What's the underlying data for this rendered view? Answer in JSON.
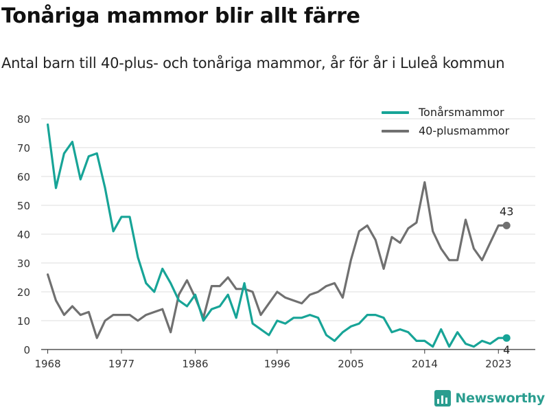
{
  "header": {
    "title": "Tonåriga mammor blir allt färre",
    "subtitle": "Antal barn till 40-plus- och tonåriga mammor, år för år i Luleå kommun"
  },
  "brand": {
    "name": "Newsworthy",
    "color": "#2a9d8f"
  },
  "chart_data": {
    "type": "line",
    "x": [
      1968,
      1969,
      1970,
      1971,
      1972,
      1973,
      1974,
      1975,
      1976,
      1977,
      1978,
      1979,
      1980,
      1981,
      1982,
      1983,
      1984,
      1985,
      1986,
      1987,
      1988,
      1989,
      1990,
      1991,
      1992,
      1993,
      1994,
      1995,
      1996,
      1997,
      1998,
      1999,
      2000,
      2001,
      2002,
      2003,
      2004,
      2005,
      2006,
      2007,
      2008,
      2009,
      2010,
      2011,
      2012,
      2013,
      2014,
      2015,
      2016,
      2017,
      2018,
      2019,
      2020,
      2021,
      2022,
      2023,
      2024
    ],
    "x_ticks": [
      1968,
      1977,
      1986,
      1996,
      2005,
      2014,
      2023
    ],
    "y_ticks": [
      0,
      10,
      20,
      30,
      40,
      50,
      60,
      70,
      80
    ],
    "ylim": [
      0,
      80
    ],
    "grid": true,
    "legend_position": "top-right",
    "series": [
      {
        "name": "Tonårsmammor",
        "color": "#17a497",
        "values": [
          78,
          56,
          68,
          72,
          59,
          67,
          68,
          56,
          41,
          46,
          46,
          32,
          23,
          20,
          28,
          23,
          17,
          15,
          19,
          10,
          14,
          15,
          19,
          11,
          23,
          9,
          7,
          5,
          10,
          9,
          11,
          11,
          12,
          11,
          5,
          3,
          6,
          8,
          9,
          12,
          12,
          11,
          6,
          7,
          6,
          3,
          3,
          1,
          7,
          1,
          6,
          2,
          1,
          3,
          2,
          4,
          4
        ],
        "end_label": "4"
      },
      {
        "name": "40-plusmammor",
        "color": "#707070",
        "values": [
          26,
          17,
          12,
          15,
          12,
          13,
          4,
          10,
          12,
          12,
          12,
          10,
          12,
          13,
          14,
          6,
          19,
          24,
          18,
          11,
          22,
          22,
          25,
          21,
          21,
          20,
          12,
          16,
          20,
          18,
          17,
          16,
          19,
          20,
          22,
          23,
          18,
          31,
          41,
          43,
          38,
          28,
          39,
          37,
          42,
          44,
          58,
          41,
          35,
          31,
          31,
          45,
          35,
          31,
          37,
          43,
          43
        ],
        "end_label": "43"
      }
    ]
  }
}
